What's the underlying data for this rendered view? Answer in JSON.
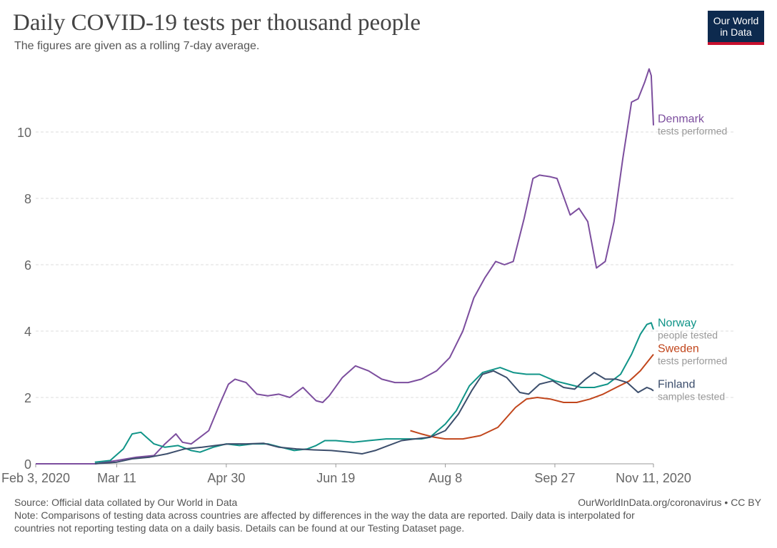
{
  "header": {
    "title": "Daily COVID-19 tests per thousand people",
    "subtitle": "The figures are given as a rolling 7-day average.",
    "logo_line1": "Our World",
    "logo_line2": "in Data"
  },
  "footer": {
    "source": "Source: Official data collated by Our World in Data",
    "credit": "OurWorldInData.org/coronavirus • CC BY",
    "note_line1": "Note: Comparisons of testing data across countries are affected by differences in the way the data are reported. Daily data is interpolated for",
    "note_line2": "countries not reporting testing data on a daily basis. Details can be found at our Testing Dataset page."
  },
  "colors": {
    "Denmark": "#7c4e9e",
    "Norway": "#109488",
    "Sweden": "#c1461c",
    "Finland": "#3c4e6c",
    "grid": "#dddddd",
    "axis": "#999999",
    "subtext": "#999999"
  },
  "chart_data": {
    "type": "line",
    "title": "Daily COVID-19 tests per thousand people",
    "subtitle": "The figures are given as a rolling 7-day average.",
    "xlim": [
      "2020-02-03",
      "2020-11-11"
    ],
    "ylim": [
      0,
      12
    ],
    "grid": true,
    "x_ticks": [
      {
        "date": "2020-02-03",
        "label": "Feb 3, 2020"
      },
      {
        "date": "2020-03-11",
        "label": "Mar 11"
      },
      {
        "date": "2020-04-30",
        "label": "Apr 30"
      },
      {
        "date": "2020-06-19",
        "label": "Jun 19"
      },
      {
        "date": "2020-08-08",
        "label": "Aug 8"
      },
      {
        "date": "2020-09-27",
        "label": "Sep 27"
      },
      {
        "date": "2020-11-11",
        "label": "Nov 11, 2020"
      }
    ],
    "y_ticks": [
      0,
      2,
      4,
      6,
      8,
      10
    ],
    "series": [
      {
        "name": "Denmark",
        "sublabel": "tests performed",
        "points": [
          [
            "2020-02-03",
            0
          ],
          [
            "2020-03-01",
            0
          ],
          [
            "2020-03-11",
            0.1
          ],
          [
            "2020-03-20",
            0.2
          ],
          [
            "2020-03-28",
            0.25
          ],
          [
            "2020-04-02",
            0.6
          ],
          [
            "2020-04-07",
            0.9
          ],
          [
            "2020-04-10",
            0.65
          ],
          [
            "2020-04-14",
            0.6
          ],
          [
            "2020-04-18",
            0.8
          ],
          [
            "2020-04-22",
            1.0
          ],
          [
            "2020-04-27",
            1.8
          ],
          [
            "2020-05-01",
            2.4
          ],
          [
            "2020-05-04",
            2.55
          ],
          [
            "2020-05-09",
            2.45
          ],
          [
            "2020-05-14",
            2.1
          ],
          [
            "2020-05-19",
            2.05
          ],
          [
            "2020-05-24",
            2.1
          ],
          [
            "2020-05-29",
            2.0
          ],
          [
            "2020-06-04",
            2.3
          ],
          [
            "2020-06-07",
            2.1
          ],
          [
            "2020-06-10",
            1.9
          ],
          [
            "2020-06-13",
            1.85
          ],
          [
            "2020-06-16",
            2.05
          ],
          [
            "2020-06-22",
            2.6
          ],
          [
            "2020-06-28",
            2.95
          ],
          [
            "2020-07-04",
            2.8
          ],
          [
            "2020-07-10",
            2.55
          ],
          [
            "2020-07-16",
            2.45
          ],
          [
            "2020-07-22",
            2.45
          ],
          [
            "2020-07-28",
            2.55
          ],
          [
            "2020-08-04",
            2.8
          ],
          [
            "2020-08-10",
            3.2
          ],
          [
            "2020-08-16",
            4.0
          ],
          [
            "2020-08-21",
            5.0
          ],
          [
            "2020-08-26",
            5.6
          ],
          [
            "2020-08-31",
            6.1
          ],
          [
            "2020-09-04",
            6.0
          ],
          [
            "2020-09-08",
            6.1
          ],
          [
            "2020-09-13",
            7.4
          ],
          [
            "2020-09-17",
            8.6
          ],
          [
            "2020-09-20",
            8.7
          ],
          [
            "2020-09-25",
            8.65
          ],
          [
            "2020-09-28",
            8.6
          ],
          [
            "2020-10-04",
            7.5
          ],
          [
            "2020-10-08",
            7.7
          ],
          [
            "2020-10-12",
            7.3
          ],
          [
            "2020-10-16",
            5.9
          ],
          [
            "2020-10-20",
            6.1
          ],
          [
            "2020-10-24",
            7.3
          ],
          [
            "2020-10-28",
            9.2
          ],
          [
            "2020-11-01",
            10.9
          ],
          [
            "2020-11-04",
            11.0
          ],
          [
            "2020-11-07",
            11.5
          ],
          [
            "2020-11-09",
            11.9
          ],
          [
            "2020-11-10",
            11.7
          ],
          [
            "2020-11-11",
            10.2
          ]
        ]
      },
      {
        "name": "Norway",
        "sublabel": "people tested",
        "points": [
          [
            "2020-03-01",
            0.05
          ],
          [
            "2020-03-08",
            0.1
          ],
          [
            "2020-03-14",
            0.45
          ],
          [
            "2020-03-18",
            0.9
          ],
          [
            "2020-03-22",
            0.95
          ],
          [
            "2020-03-28",
            0.6
          ],
          [
            "2020-04-02",
            0.5
          ],
          [
            "2020-04-08",
            0.55
          ],
          [
            "2020-04-14",
            0.4
          ],
          [
            "2020-04-18",
            0.35
          ],
          [
            "2020-04-24",
            0.5
          ],
          [
            "2020-04-30",
            0.6
          ],
          [
            "2020-05-06",
            0.55
          ],
          [
            "2020-05-12",
            0.6
          ],
          [
            "2020-05-19",
            0.6
          ],
          [
            "2020-05-25",
            0.5
          ],
          [
            "2020-05-31",
            0.4
          ],
          [
            "2020-06-06",
            0.45
          ],
          [
            "2020-06-10",
            0.55
          ],
          [
            "2020-06-14",
            0.7
          ],
          [
            "2020-06-19",
            0.7
          ],
          [
            "2020-06-27",
            0.65
          ],
          [
            "2020-07-04",
            0.7
          ],
          [
            "2020-07-12",
            0.75
          ],
          [
            "2020-07-20",
            0.75
          ],
          [
            "2020-07-28",
            0.75
          ],
          [
            "2020-08-01",
            0.8
          ],
          [
            "2020-08-08",
            1.2
          ],
          [
            "2020-08-13",
            1.6
          ],
          [
            "2020-08-19",
            2.35
          ],
          [
            "2020-08-25",
            2.75
          ],
          [
            "2020-09-02",
            2.9
          ],
          [
            "2020-09-08",
            2.75
          ],
          [
            "2020-09-14",
            2.7
          ],
          [
            "2020-09-20",
            2.7
          ],
          [
            "2020-09-27",
            2.5
          ],
          [
            "2020-10-03",
            2.4
          ],
          [
            "2020-10-09",
            2.3
          ],
          [
            "2020-10-15",
            2.3
          ],
          [
            "2020-10-21",
            2.4
          ],
          [
            "2020-10-27",
            2.7
          ],
          [
            "2020-11-01",
            3.3
          ],
          [
            "2020-11-05",
            3.9
          ],
          [
            "2020-11-08",
            4.2
          ],
          [
            "2020-11-10",
            4.25
          ],
          [
            "2020-11-11",
            4.05
          ]
        ]
      },
      {
        "name": "Sweden",
        "sublabel": "tests performed",
        "points": [
          [
            "2020-07-23",
            1.0
          ],
          [
            "2020-07-28",
            0.9
          ],
          [
            "2020-08-03",
            0.8
          ],
          [
            "2020-08-08",
            0.75
          ],
          [
            "2020-08-16",
            0.75
          ],
          [
            "2020-08-24",
            0.85
          ],
          [
            "2020-09-01",
            1.1
          ],
          [
            "2020-09-09",
            1.7
          ],
          [
            "2020-09-14",
            1.95
          ],
          [
            "2020-09-19",
            2.0
          ],
          [
            "2020-09-25",
            1.95
          ],
          [
            "2020-10-01",
            1.85
          ],
          [
            "2020-10-07",
            1.85
          ],
          [
            "2020-10-13",
            1.95
          ],
          [
            "2020-10-19",
            2.1
          ],
          [
            "2020-10-25",
            2.3
          ],
          [
            "2020-10-31",
            2.5
          ],
          [
            "2020-11-05",
            2.8
          ],
          [
            "2020-11-11",
            3.3
          ]
        ]
      },
      {
        "name": "Finland",
        "sublabel": "samples tested",
        "points": [
          [
            "2020-03-01",
            0
          ],
          [
            "2020-03-11",
            0.05
          ],
          [
            "2020-03-18",
            0.15
          ],
          [
            "2020-03-26",
            0.2
          ],
          [
            "2020-04-03",
            0.3
          ],
          [
            "2020-04-11",
            0.45
          ],
          [
            "2020-04-19",
            0.5
          ],
          [
            "2020-04-25",
            0.55
          ],
          [
            "2020-05-01",
            0.6
          ],
          [
            "2020-05-09",
            0.6
          ],
          [
            "2020-05-17",
            0.62
          ],
          [
            "2020-05-24",
            0.5
          ],
          [
            "2020-06-01",
            0.45
          ],
          [
            "2020-06-09",
            0.42
          ],
          [
            "2020-06-17",
            0.4
          ],
          [
            "2020-06-25",
            0.35
          ],
          [
            "2020-07-01",
            0.3
          ],
          [
            "2020-07-07",
            0.4
          ],
          [
            "2020-07-13",
            0.55
          ],
          [
            "2020-07-19",
            0.7
          ],
          [
            "2020-07-25",
            0.75
          ],
          [
            "2020-08-01",
            0.8
          ],
          [
            "2020-08-08",
            1.0
          ],
          [
            "2020-08-14",
            1.5
          ],
          [
            "2020-08-20",
            2.2
          ],
          [
            "2020-08-25",
            2.7
          ],
          [
            "2020-08-30",
            2.8
          ],
          [
            "2020-09-05",
            2.6
          ],
          [
            "2020-09-11",
            2.15
          ],
          [
            "2020-09-15",
            2.1
          ],
          [
            "2020-09-20",
            2.4
          ],
          [
            "2020-09-26",
            2.5
          ],
          [
            "2020-10-01",
            2.3
          ],
          [
            "2020-10-06",
            2.25
          ],
          [
            "2020-10-11",
            2.55
          ],
          [
            "2020-10-15",
            2.75
          ],
          [
            "2020-10-20",
            2.55
          ],
          [
            "2020-10-25",
            2.55
          ],
          [
            "2020-10-30",
            2.45
          ],
          [
            "2020-11-04",
            2.15
          ],
          [
            "2020-11-08",
            2.3
          ],
          [
            "2020-11-10",
            2.25
          ],
          [
            "2020-11-11",
            2.2
          ]
        ]
      }
    ]
  }
}
